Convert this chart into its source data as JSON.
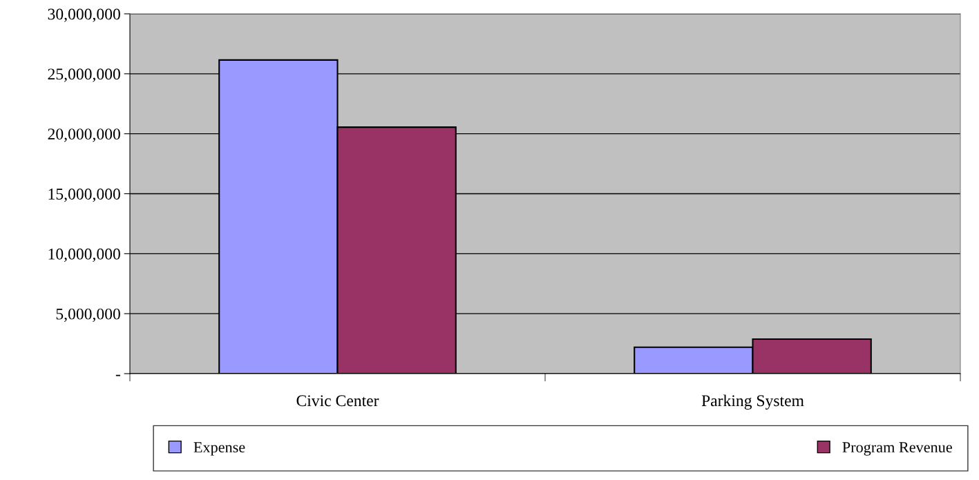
{
  "chart_data": {
    "type": "bar",
    "categories": [
      "Civic Center",
      "Parking System"
    ],
    "series": [
      {
        "name": "Expense",
        "color": "#9999ff",
        "values": [
          26150000,
          2200000
        ]
      },
      {
        "name": "Program Revenue",
        "color": "#993366",
        "values": [
          20550000,
          2880000
        ]
      }
    ],
    "ylim": [
      0,
      30000000
    ],
    "yticks": [
      {
        "value": 0,
        "label": "-"
      },
      {
        "value": 5000000,
        "label": "5,000,000"
      },
      {
        "value": 10000000,
        "label": "10,000,000"
      },
      {
        "value": 15000000,
        "label": "15,000,000"
      },
      {
        "value": 20000000,
        "label": "20,000,000"
      },
      {
        "value": 25000000,
        "label": "25,000,000"
      },
      {
        "value": 30000000,
        "label": "30,000,000"
      }
    ],
    "grid": "y",
    "legend": "bottom"
  }
}
